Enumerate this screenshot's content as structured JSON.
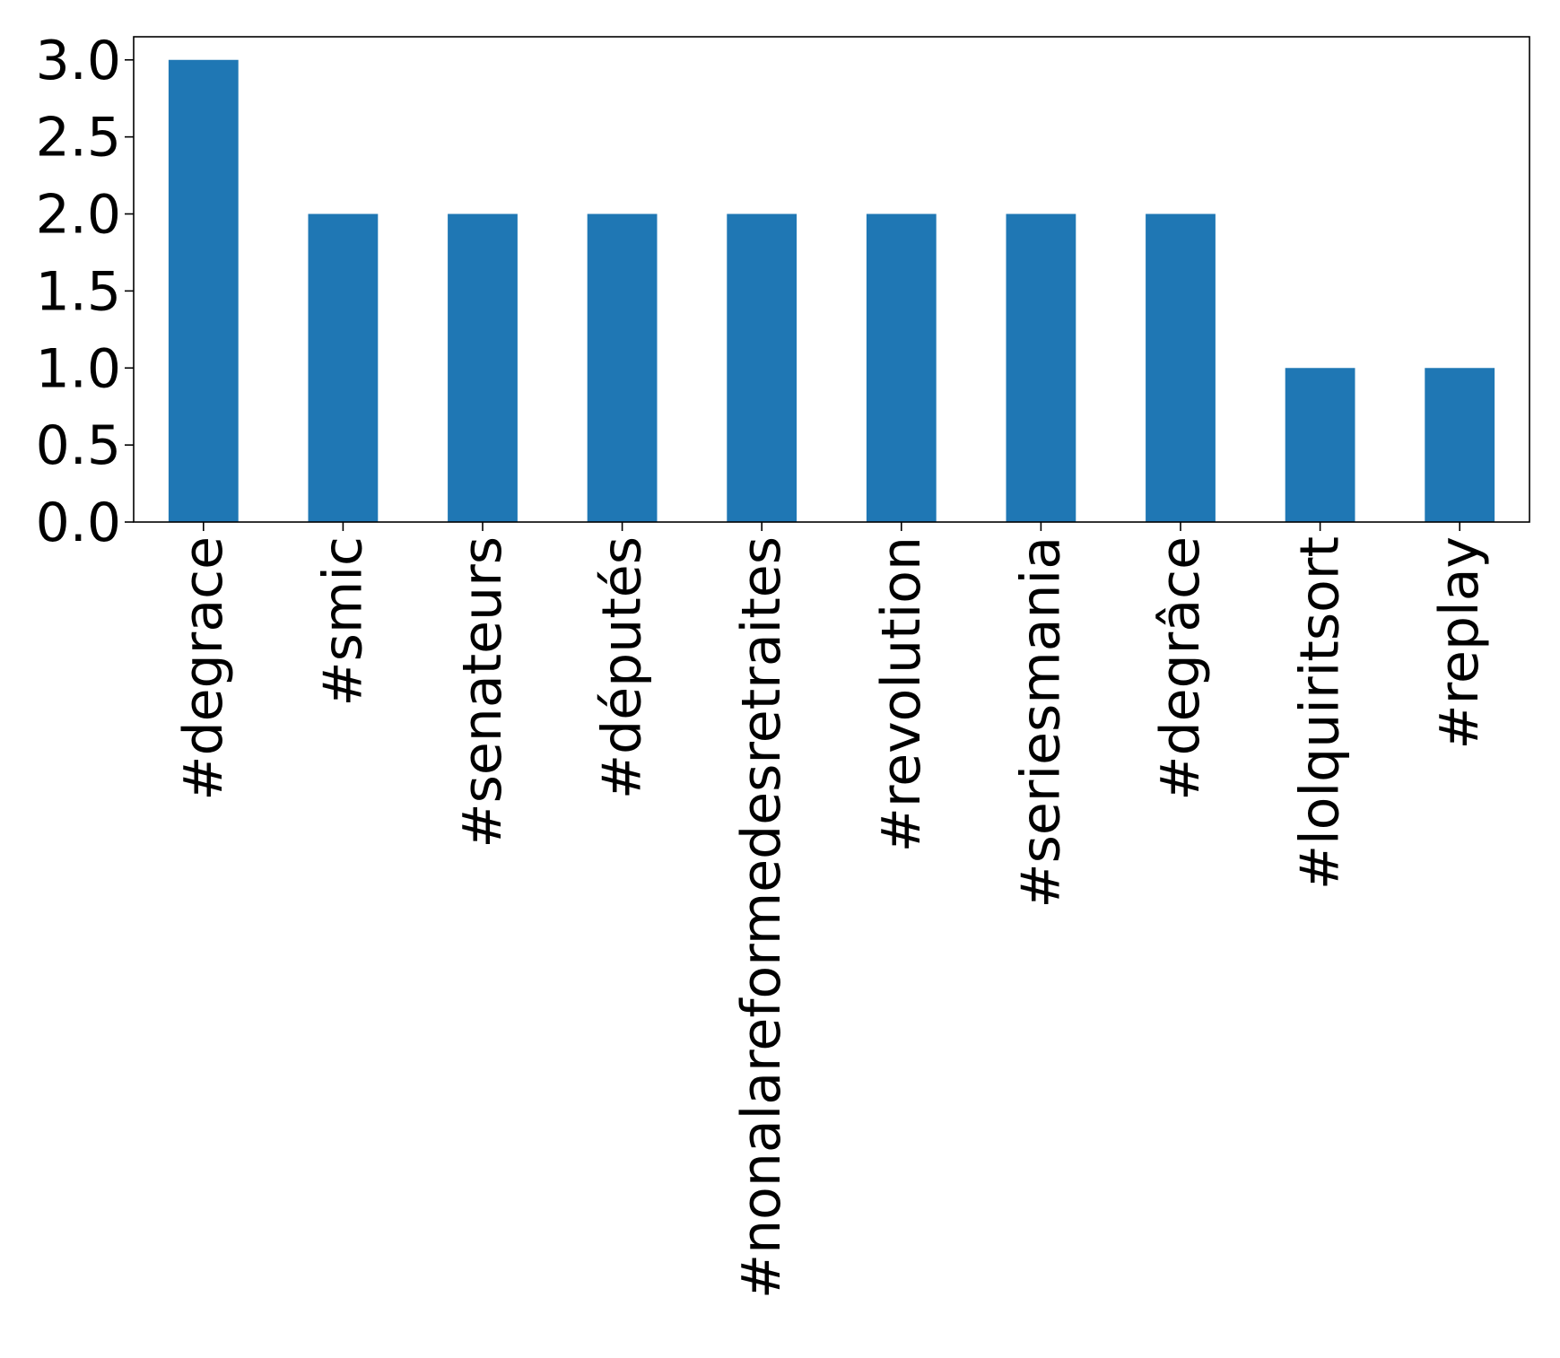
{
  "chart_data": {
    "type": "bar",
    "title": "",
    "xlabel": "",
    "ylabel": "",
    "categories": [
      "#degrace",
      "#smic",
      "#senateurs",
      "#députés",
      "#nonalareformedesretraites",
      "#revolution",
      "#seriesmania",
      "#degrâce",
      "#lolquiritsort",
      "#replay"
    ],
    "values": [
      3,
      2,
      2,
      2,
      2,
      2,
      2,
      2,
      1,
      1
    ],
    "ylim": [
      0,
      3.15
    ],
    "yticks": [
      "0.0",
      "0.5",
      "1.0",
      "1.5",
      "2.0",
      "2.5",
      "3.0"
    ],
    "bar_color": "#1f77b4",
    "grid": false,
    "legend": "none"
  }
}
